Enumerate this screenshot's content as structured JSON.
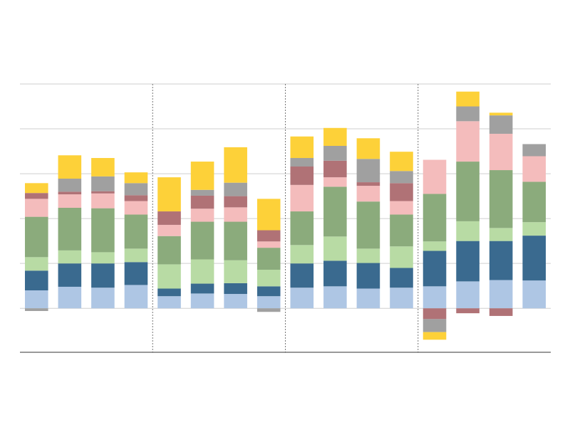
{
  "chart_data": {
    "type": "stacked_bar",
    "categories": [
      null,
      null,
      null,
      null,
      null,
      null,
      null,
      null,
      null,
      null,
      null,
      null,
      null,
      null,
      null,
      null
    ],
    "series": [
      {
        "color": "#aec6e4",
        "values": [
          0.4,
          0.48,
          0.46,
          0.52,
          0.27,
          0.33,
          0.32,
          0.27,
          0.46,
          0.49,
          0.44,
          0.46,
          0.49,
          0.6,
          0.63,
          0.62
        ]
      },
      {
        "color": "#3a6a8f",
        "values": [
          0.44,
          0.52,
          0.54,
          0.51,
          0.17,
          0.22,
          0.24,
          0.22,
          0.54,
          0.57,
          0.57,
          0.44,
          0.79,
          0.9,
          0.87,
          1.0
        ]
      },
      {
        "color": "#b8dba4",
        "values": [
          0.3,
          0.29,
          0.25,
          0.3,
          0.54,
          0.54,
          0.51,
          0.37,
          0.41,
          0.54,
          0.32,
          0.48,
          0.21,
          0.44,
          0.29,
          0.3
        ]
      },
      {
        "color": "#8bab7c",
        "values": [
          0.9,
          0.95,
          0.98,
          0.76,
          0.63,
          0.84,
          0.86,
          0.49,
          0.75,
          1.11,
          1.05,
          0.71,
          1.06,
          1.33,
          1.29,
          0.9
        ]
      },
      {
        "color": "#f4bcbc",
        "values": [
          0.4,
          0.3,
          0.33,
          0.3,
          0.25,
          0.29,
          0.32,
          0.14,
          0.59,
          0.21,
          0.35,
          0.3,
          0.76,
          0.9,
          0.81,
          0.57
        ]
      },
      {
        "color": "#b07276",
        "values": [
          0.13,
          0.06,
          0.05,
          0.13,
          0.3,
          0.29,
          0.25,
          0.25,
          0.41,
          0.37,
          0.08,
          0.4,
          -0.24,
          -0.11,
          -0.17,
          0
        ]
      },
      {
        "color": "#a0a0a0",
        "values": [
          -0.06,
          0.29,
          0.33,
          0.27,
          0,
          0.13,
          0.3,
          -0.08,
          0.19,
          0.33,
          0.52,
          0.27,
          -0.29,
          0.33,
          0.41,
          0.27
        ]
      },
      {
        "color": "#fdd139",
        "values": [
          0.22,
          0.52,
          0.41,
          0.24,
          0.76,
          0.63,
          0.79,
          0.7,
          0.48,
          0.4,
          0.46,
          0.43,
          -0.17,
          0.33,
          0.06,
          0
        ]
      }
    ],
    "ylim": [
      -0.98,
      5
    ],
    "yticks": [
      0,
      1,
      2,
      3,
      4,
      5
    ],
    "grid": true
  }
}
